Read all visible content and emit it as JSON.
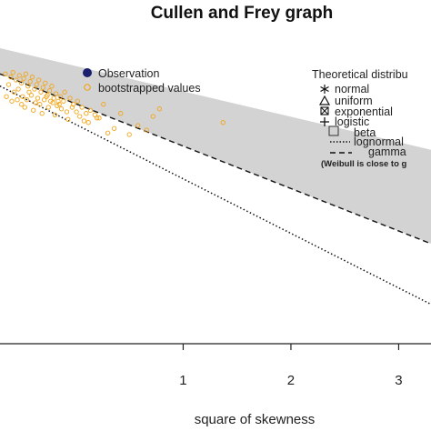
{
  "chart_data": {
    "type": "scatter",
    "title": "Cullen and Frey graph",
    "xlabel": "square of skewness",
    "x_ticks": [
      "1",
      "2",
      "3"
    ],
    "x_tick_values": [
      1,
      2,
      3
    ],
    "xlim": [
      -0.7,
      3.3
    ],
    "ylim": [
      -10.5,
      0
    ],
    "grid": false,
    "legend_observed": {
      "items": [
        {
          "label": "Observation",
          "symbol": "filled-circle",
          "color": "#1a1f6e"
        },
        {
          "label": "bootstrapped values",
          "symbol": "open-circle",
          "color": "#f2a51a"
        }
      ]
    },
    "legend_theoretical": {
      "title": "Theoretical distribu",
      "items": [
        {
          "label": "normal",
          "symbol": "asterisk-icon"
        },
        {
          "label": "uniform",
          "symbol": "triangle-icon"
        },
        {
          "label": "exponential",
          "symbol": "boxed-x-icon"
        },
        {
          "label": "logistic",
          "symbol": "plus-icon"
        },
        {
          "label": "beta",
          "symbol": "gray-square-icon"
        },
        {
          "label": "lognormal",
          "symbol": "dotted-line-icon"
        },
        {
          "label": "gamma",
          "symbol": "dashed-line-icon"
        }
      ],
      "note": "(Weibull is close to g"
    },
    "beta_region": {
      "upper": [
        [
          -0.7,
          -0.75
        ],
        [
          3.3,
          -4.1
        ]
      ],
      "lower": [
        [
          -0.7,
          -1.6
        ],
        [
          3.3,
          -7.2
        ]
      ],
      "color": "#d3d3d3"
    },
    "gamma_line": [
      [
        -0.7,
        -1.6
      ],
      [
        3.3,
        -7.2
      ]
    ],
    "lognormal_line": [
      [
        -0.7,
        -2.0
      ],
      [
        3.3,
        -9.2
      ]
    ],
    "bootstrap_points": {
      "color": "#f2a51a",
      "x": [
        -0.65,
        -0.6,
        -0.58,
        -0.55,
        -0.52,
        -0.5,
        -0.48,
        -0.46,
        -0.44,
        -0.42,
        -0.4,
        -0.38,
        -0.36,
        -0.34,
        -0.32,
        -0.3,
        -0.28,
        -0.26,
        -0.24,
        -0.22,
        -0.2,
        -0.18,
        -0.16,
        -0.14,
        -0.62,
        -0.57,
        -0.53,
        -0.49,
        -0.45,
        -0.41,
        -0.37,
        -0.33,
        -0.29,
        -0.25,
        -0.21,
        -0.17,
        -0.13,
        -0.1,
        -0.08,
        -0.05,
        -0.02,
        0.02,
        0.06,
        0.1,
        0.14,
        0.18,
        0.22,
        0.26,
        -0.64,
        -0.59,
        -0.54,
        -0.5,
        -0.47,
        -0.43,
        -0.39,
        -0.35,
        -0.31,
        -0.27,
        -0.23,
        -0.19,
        -0.15,
        -0.11,
        -0.07,
        -0.03,
        0.01,
        0.04,
        0.08,
        0.12,
        0.2,
        0.3,
        0.36,
        0.42,
        0.5,
        0.58,
        0.66,
        0.72,
        0.78,
        1.37
      ],
      "y": [
        -1.6,
        -1.7,
        -1.55,
        -1.8,
        -1.65,
        -1.9,
        -1.75,
        -1.6,
        -2.0,
        -1.85,
        -1.7,
        -2.1,
        -1.95,
        -1.8,
        -2.2,
        -2.05,
        -1.9,
        -2.3,
        -2.15,
        -2.0,
        -2.4,
        -2.25,
        -2.5,
        -2.35,
        -1.95,
        -2.2,
        -2.1,
        -2.35,
        -2.45,
        -2.3,
        -2.55,
        -2.6,
        -2.45,
        -2.7,
        -2.55,
        -2.65,
        -2.75,
        -2.2,
        -2.85,
        -2.4,
        -2.6,
        -2.5,
        -2.7,
        -2.9,
        -2.8,
        -2.95,
        -3.05,
        -2.6,
        -2.35,
        -2.5,
        -2.45,
        -2.6,
        -2.7,
        -2.2,
        -2.8,
        -2.4,
        -2.9,
        -2.35,
        -2.5,
        -2.95,
        -2.6,
        -2.5,
        -3.1,
        -2.7,
        -2.85,
        -3.0,
        -3.15,
        -3.2,
        -3.05,
        -3.55,
        -3.4,
        -2.9,
        -3.6,
        -3.3,
        -3.45,
        -3.0,
        -2.75,
        -3.2
      ]
    }
  }
}
